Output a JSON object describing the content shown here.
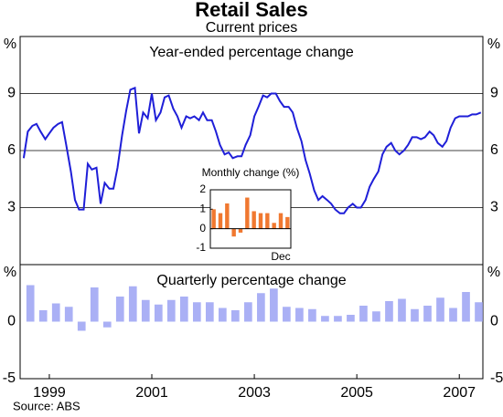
{
  "title": "Retail Sales",
  "subtitle": "Current prices",
  "source": "Source: ABS",
  "chart_data": [
    {
      "type": "line",
      "title": "Year-ended percentage change",
      "y_unit": "%",
      "xlim": [
        1998.93,
        2007.96
      ],
      "ylim": [
        0,
        12
      ],
      "yticks": [
        3,
        6,
        9
      ],
      "grid": true,
      "x": [
        1999,
        1999.08,
        1999.17,
        1999.25,
        1999.33,
        1999.42,
        1999.5,
        1999.58,
        1999.67,
        1999.75,
        1999.83,
        1999.92,
        2000,
        2000.08,
        2000.17,
        2000.25,
        2000.33,
        2000.42,
        2000.5,
        2000.58,
        2000.67,
        2000.75,
        2000.83,
        2000.92,
        2001,
        2001.08,
        2001.17,
        2001.25,
        2001.33,
        2001.42,
        2001.5,
        2001.58,
        2001.67,
        2001.75,
        2001.83,
        2001.92,
        2002,
        2002.08,
        2002.17,
        2002.25,
        2002.33,
        2002.42,
        2002.5,
        2002.58,
        2002.67,
        2002.75,
        2002.83,
        2002.92,
        2003,
        2003.08,
        2003.17,
        2003.25,
        2003.33,
        2003.42,
        2003.5,
        2003.58,
        2003.67,
        2003.75,
        2003.83,
        2003.92,
        2004,
        2004.08,
        2004.17,
        2004.25,
        2004.33,
        2004.42,
        2004.5,
        2004.58,
        2004.67,
        2004.75,
        2004.83,
        2004.92,
        2005,
        2005.08,
        2005.17,
        2005.25,
        2005.33,
        2005.42,
        2005.5,
        2005.58,
        2005.67,
        2005.75,
        2005.83,
        2005.92,
        2006,
        2006.08,
        2006.17,
        2006.25,
        2006.33,
        2006.42,
        2006.5,
        2006.58,
        2006.67,
        2006.75,
        2006.83,
        2006.92,
        2007,
        2007.08,
        2007.17,
        2007.25,
        2007.33,
        2007.42,
        2007.5,
        2007.58,
        2007.67,
        2007.75,
        2007.83,
        2007.92
      ],
      "series": [
        {
          "color": "#1f1fd8",
          "values": [
            5.6,
            7.0,
            7.3,
            7.4,
            7.0,
            6.6,
            6.9,
            7.2,
            7.4,
            7.5,
            6.3,
            4.9,
            3.4,
            2.9,
            2.9,
            5.3,
            5.0,
            5.1,
            3.2,
            4.3,
            4.0,
            4.0,
            5.1,
            6.8,
            8.1,
            9.2,
            9.3,
            6.9,
            8.0,
            7.7,
            9.0,
            7.6,
            8.0,
            8.8,
            8.9,
            8.2,
            7.8,
            7.2,
            7.8,
            7.7,
            7.8,
            7.6,
            8.0,
            7.6,
            7.6,
            7.0,
            6.3,
            5.8,
            5.9,
            5.6,
            5.7,
            5.7,
            6.3,
            6.8,
            7.8,
            8.3,
            8.9,
            8.8,
            9.0,
            9.0,
            8.6,
            8.3,
            8.3,
            8.0,
            7.2,
            6.5,
            5.5,
            4.8,
            3.9,
            3.4,
            3.6,
            3.4,
            3.2,
            2.9,
            2.7,
            2.7,
            3.0,
            3.2,
            3.0,
            3.0,
            3.4,
            4.1,
            4.5,
            4.9,
            5.8,
            6.2,
            6.4,
            6.0,
            5.8,
            6.0,
            6.3,
            6.7,
            6.7,
            6.6,
            6.7,
            7.0,
            6.8,
            6.4,
            6.2,
            6.5,
            7.2,
            7.7,
            7.8,
            7.8,
            7.8,
            7.9,
            7.9,
            8.0
          ]
        }
      ]
    },
    {
      "type": "bar",
      "title": "Quarterly percentage change",
      "y_unit": "%",
      "xlim": [
        1998.93,
        2007.96
      ],
      "ylim": [
        -5,
        5
      ],
      "yticks": [
        -5,
        0
      ],
      "color": "#aab0f5",
      "xticks": [
        {
          "value": 1999.5,
          "label": "1999"
        },
        {
          "value": 2001.5,
          "label": "2001"
        },
        {
          "value": 2003.5,
          "label": "2003"
        },
        {
          "value": 2005.5,
          "label": "2005"
        },
        {
          "value": 2007.5,
          "label": "2007"
        }
      ],
      "x": [
        1999.13,
        1999.38,
        1999.63,
        1999.88,
        2000.13,
        2000.38,
        2000.63,
        2000.88,
        2001.13,
        2001.38,
        2001.63,
        2001.88,
        2002.13,
        2002.38,
        2002.63,
        2002.88,
        2003.13,
        2003.38,
        2003.63,
        2003.88,
        2004.13,
        2004.38,
        2004.63,
        2004.88,
        2005.13,
        2005.38,
        2005.63,
        2005.88,
        2006.13,
        2006.38,
        2006.63,
        2006.88,
        2007.13,
        2007.38,
        2007.63,
        2007.88
      ],
      "values": [
        3.2,
        1.0,
        1.6,
        1.3,
        -0.8,
        3.0,
        -0.5,
        2.2,
        3.1,
        1.9,
        1.5,
        1.9,
        2.2,
        1.7,
        1.7,
        1.2,
        1.0,
        1.7,
        2.5,
        2.9,
        1.3,
        1.2,
        1.1,
        0.5,
        0.5,
        0.6,
        1.4,
        0.9,
        1.8,
        2.0,
        1.1,
        1.4,
        2.1,
        1.2,
        2.6,
        1.7
      ]
    },
    {
      "type": "inset-bar",
      "title": "Monthly change (%)",
      "color": "#f07830",
      "categories": [
        null,
        null,
        null,
        null,
        null,
        null,
        null,
        null,
        null,
        null,
        null,
        "Dec"
      ],
      "values": [
        1.0,
        0.8,
        1.3,
        -0.4,
        -0.2,
        1.6,
        0.9,
        0.8,
        0.8,
        0.3,
        0.8,
        0.6
      ],
      "ylim": [
        -1,
        2
      ],
      "yticks": [
        -1,
        0,
        1,
        2
      ]
    }
  ]
}
